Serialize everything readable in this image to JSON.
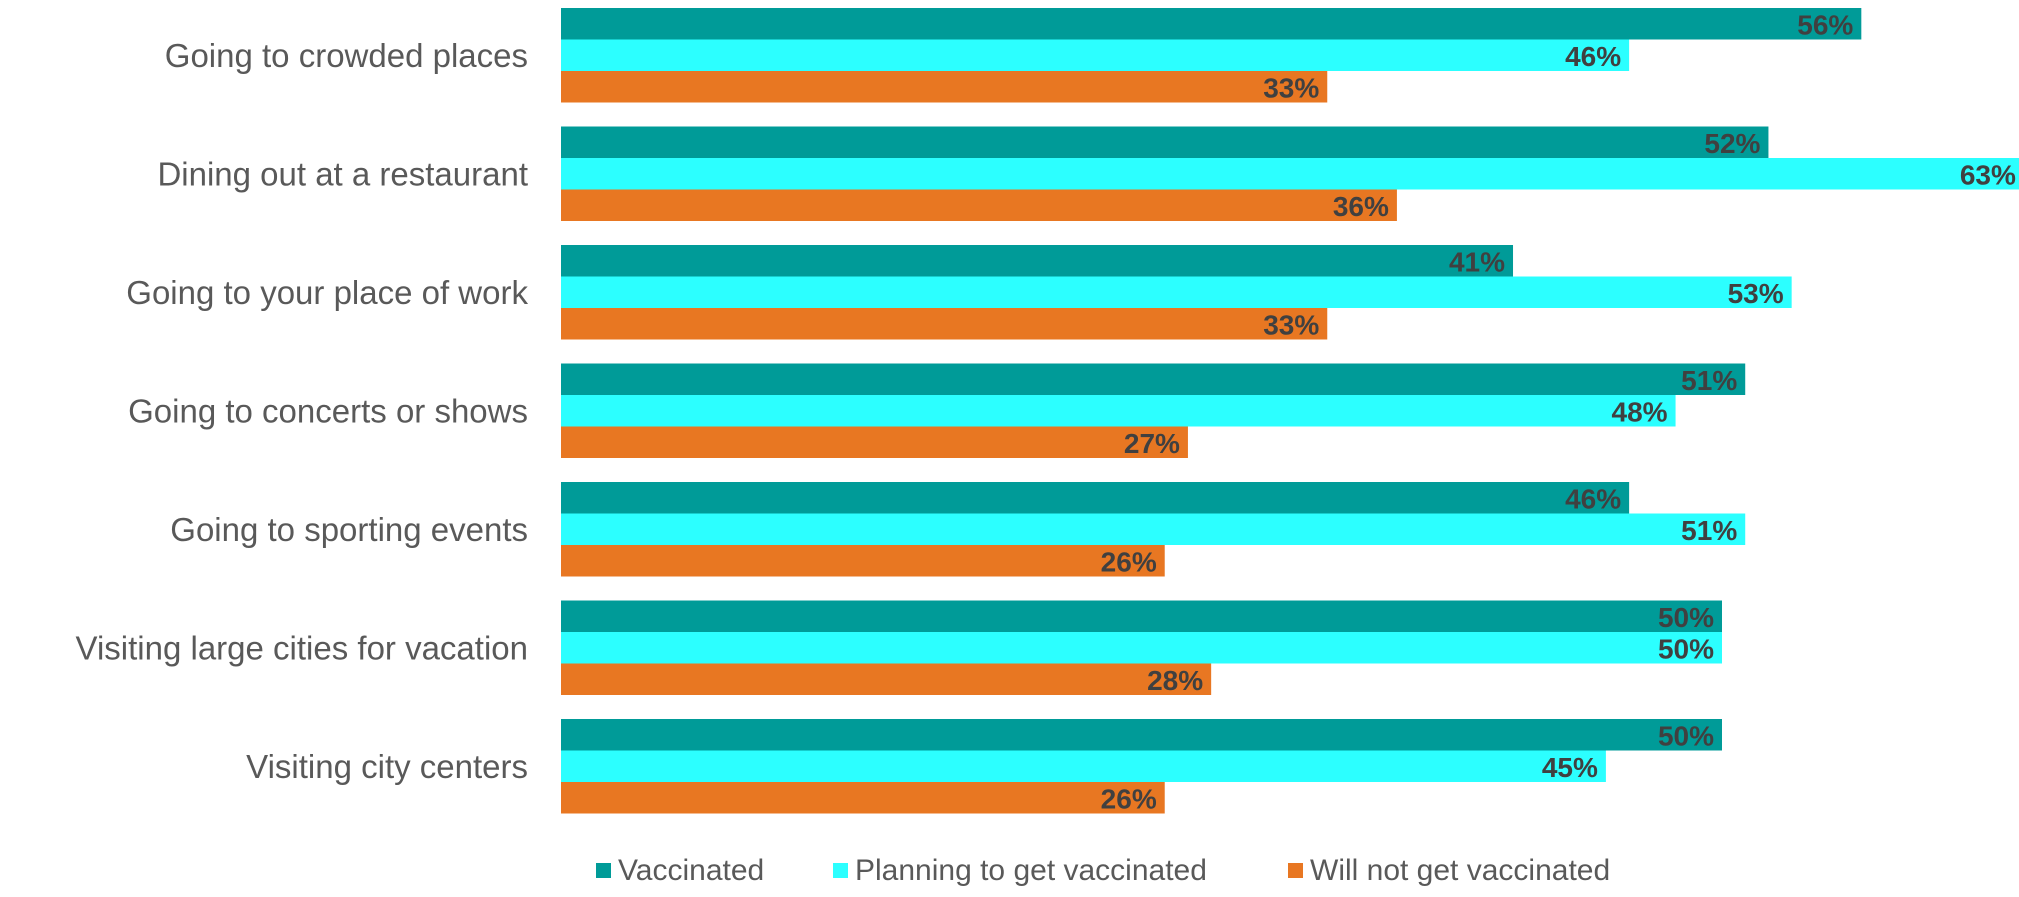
{
  "chart_data": {
    "type": "bar",
    "orientation": "horizontal",
    "categories": [
      "Going to crowded places",
      "Dining out at a restaurant",
      "Going to your place of work",
      "Going to concerts or shows",
      "Going to sporting events",
      "Visiting large cities for vacation",
      "Visiting city centers"
    ],
    "series": [
      {
        "name": "Vaccinated",
        "color": "#009B98",
        "values": [
          56,
          52,
          41,
          51,
          46,
          50,
          50
        ],
        "labels": [
          "56%",
          "52%",
          "41%",
          "51%",
          "46%",
          "50%",
          "50%"
        ]
      },
      {
        "name": "Planning to get vaccinated",
        "color": "#2CFFFF",
        "values": [
          46,
          63,
          53,
          48,
          51,
          50,
          45
        ],
        "labels": [
          "46%",
          "63%",
          "53%",
          "48%",
          "51%",
          "50%",
          "45%"
        ]
      },
      {
        "name": "Will not get vaccinated",
        "color": "#E87722",
        "values": [
          33,
          36,
          33,
          27,
          26,
          28,
          26
        ],
        "labels": [
          "33%",
          "36%",
          "33%",
          "27%",
          "26%",
          "28%",
          "26%"
        ]
      }
    ],
    "value_unit": "%",
    "xlim": [
      0,
      63
    ],
    "grid": false,
    "legend_position": "bottom"
  }
}
